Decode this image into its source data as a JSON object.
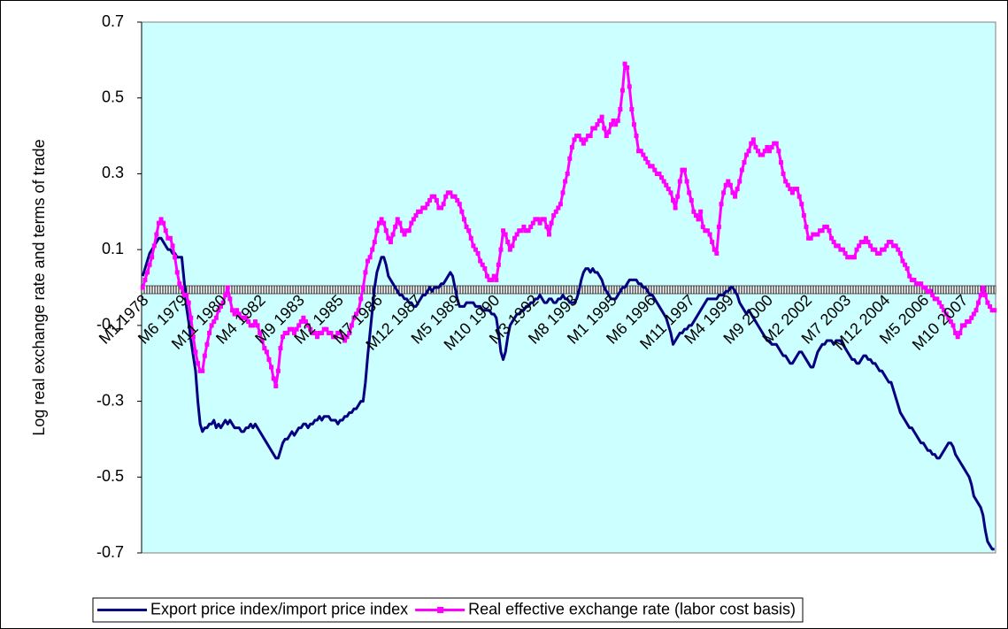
{
  "chart_data": {
    "type": "line",
    "y_label": "Log real exchange rate and terms of trade",
    "ylim": [
      -0.7,
      0.7
    ],
    "yticks": [
      -0.7,
      -0.5,
      -0.3,
      -0.1,
      0.1,
      0.3,
      0.5,
      0.7
    ],
    "legend": "bottom",
    "background": "#ccffff",
    "categories": [
      "M1 1978",
      null,
      null,
      null,
      null,
      null,
      null,
      null,
      null,
      null,
      null,
      null,
      null,
      null,
      null,
      null,
      null,
      "M6 1979",
      null,
      null,
      null,
      null,
      null,
      null,
      null,
      null,
      null,
      null,
      null,
      null,
      null,
      null,
      null,
      null,
      "M11 1980",
      null,
      null,
      null,
      null,
      null,
      null,
      null,
      null,
      null,
      null,
      null,
      null,
      null,
      null,
      null,
      null,
      "M4 1982",
      null,
      null,
      null,
      null,
      null,
      null,
      null,
      null,
      null,
      null,
      null,
      null,
      null,
      null,
      null,
      null,
      "M9 1983",
      null,
      null,
      null,
      null,
      null,
      null,
      null,
      null,
      null,
      null,
      null,
      null,
      null,
      null,
      null,
      null,
      "M2 1985",
      null,
      null,
      null,
      null,
      null,
      null,
      null,
      null,
      null,
      null,
      null,
      null,
      null,
      null,
      null,
      null,
      "M7 1986",
      null,
      null,
      null,
      null,
      null,
      null,
      null,
      null,
      null,
      null,
      null,
      null,
      null,
      null,
      null,
      null,
      "M12 1987",
      null,
      null,
      null,
      null,
      null,
      null,
      null,
      null,
      null,
      null,
      null,
      null,
      null,
      null,
      null,
      null,
      "M5 1989",
      null,
      null,
      null,
      null,
      null,
      null,
      null,
      null,
      null,
      null,
      null,
      null,
      null,
      null,
      null,
      null,
      "M10 1990",
      null,
      null,
      null,
      null,
      null,
      null,
      null,
      null,
      null,
      null,
      null,
      null,
      null,
      null,
      null,
      null,
      "M3 1992",
      null,
      null,
      null,
      null,
      null,
      null,
      null,
      null,
      null,
      null,
      null,
      null,
      null,
      null,
      null,
      null,
      "M8 1993",
      null,
      null,
      null,
      null,
      null,
      null,
      null,
      null,
      null,
      null,
      null,
      null,
      null,
      null,
      null,
      null,
      "M1 1995",
      null,
      null,
      null,
      null,
      null,
      null,
      null,
      null,
      null,
      null,
      null,
      null,
      null,
      null,
      null,
      null,
      "M6 1996",
      null,
      null,
      null,
      null,
      null,
      null,
      null,
      null,
      null,
      null,
      null,
      null,
      null,
      null,
      null,
      null,
      "M11 1997",
      null,
      null,
      null,
      null,
      null,
      null,
      null,
      null,
      null,
      null,
      null,
      null,
      null,
      null,
      null,
      null,
      "M4 1999",
      null,
      null,
      null,
      null,
      null,
      null,
      null,
      null,
      null,
      null,
      null,
      null,
      null,
      null,
      null,
      null,
      "M9 2000",
      null,
      null,
      null,
      null,
      null,
      null,
      null,
      null,
      null,
      null,
      null,
      null,
      null,
      null,
      null,
      null,
      "M2 2002",
      null,
      null,
      null,
      null,
      null,
      null,
      null,
      null,
      null,
      null,
      null,
      null,
      null,
      null,
      null,
      null,
      "M7 2003",
      null,
      null,
      null,
      null,
      null,
      null,
      null,
      null,
      null,
      null,
      null,
      null,
      null,
      null,
      null,
      null,
      "M12 2004",
      null,
      null,
      null,
      null,
      null,
      null,
      null,
      null,
      null,
      null,
      null,
      null,
      null,
      null,
      null,
      null,
      "M5 2006",
      null,
      null,
      null,
      null,
      null,
      null,
      null,
      null,
      null,
      null,
      null,
      null,
      null,
      null,
      null,
      null,
      "M10 2007",
      null,
      null,
      null,
      null,
      null,
      null,
      null,
      null,
      null,
      null,
      null,
      null,
      null,
      null
    ],
    "series": [
      {
        "name": "Export price index/import price index",
        "color": "#000080",
        "marker": "none",
        "values": [
          0.03,
          0.05,
          0.07,
          0.09,
          0.1,
          0.11,
          0.12,
          0.13,
          0.13,
          0.12,
          0.11,
          0.1,
          0.1,
          0.09,
          0.09,
          0.08,
          0.08,
          0.08,
          0.02,
          -0.05,
          -0.09,
          -0.14,
          -0.18,
          -0.22,
          -0.3,
          -0.36,
          -0.38,
          -0.37,
          -0.37,
          -0.36,
          -0.36,
          -0.35,
          -0.37,
          -0.36,
          -0.37,
          -0.36,
          -0.35,
          -0.36,
          -0.35,
          -0.36,
          -0.37,
          -0.37,
          -0.37,
          -0.38,
          -0.38,
          -0.37,
          -0.37,
          -0.36,
          -0.37,
          -0.36,
          -0.37,
          -0.38,
          -0.39,
          -0.4,
          -0.41,
          -0.42,
          -0.43,
          -0.44,
          -0.45,
          -0.45,
          -0.43,
          -0.41,
          -0.4,
          -0.4,
          -0.39,
          -0.38,
          -0.39,
          -0.38,
          -0.37,
          -0.37,
          -0.36,
          -0.36,
          -0.37,
          -0.36,
          -0.36,
          -0.35,
          -0.35,
          -0.34,
          -0.35,
          -0.34,
          -0.34,
          -0.34,
          -0.35,
          -0.35,
          -0.35,
          -0.36,
          -0.35,
          -0.35,
          -0.34,
          -0.34,
          -0.33,
          -0.33,
          -0.32,
          -0.32,
          -0.31,
          -0.3,
          -0.3,
          -0.25,
          -0.18,
          -0.12,
          -0.06,
          0.0,
          0.04,
          0.06,
          0.08,
          0.08,
          0.06,
          0.03,
          0.02,
          0.01,
          0.0,
          -0.01,
          -0.02,
          -0.02,
          -0.03,
          -0.03,
          -0.04,
          -0.04,
          -0.05,
          -0.05,
          -0.04,
          -0.03,
          -0.02,
          -0.02,
          -0.01,
          0.0,
          -0.01,
          0.0,
          0.0,
          0.0,
          0.01,
          0.01,
          0.02,
          0.03,
          0.04,
          0.03,
          0.0,
          -0.03,
          -0.05,
          -0.05,
          -0.05,
          -0.04,
          -0.04,
          -0.04,
          -0.04,
          -0.05,
          -0.05,
          -0.05,
          -0.06,
          -0.06,
          -0.06,
          -0.06,
          -0.07,
          -0.07,
          -0.08,
          -0.12,
          -0.17,
          -0.19,
          -0.17,
          -0.13,
          -0.1,
          -0.09,
          -0.08,
          -0.07,
          -0.07,
          -0.06,
          -0.06,
          -0.05,
          -0.05,
          -0.04,
          -0.04,
          -0.03,
          -0.03,
          -0.02,
          -0.03,
          -0.04,
          -0.04,
          -0.03,
          -0.03,
          -0.04,
          -0.04,
          -0.03,
          -0.03,
          -0.02,
          -0.03,
          -0.03,
          -0.04,
          -0.04,
          -0.04,
          -0.03,
          -0.01,
          0.02,
          0.04,
          0.05,
          0.05,
          0.04,
          0.05,
          0.04,
          0.04,
          0.03,
          0.02,
          0.0,
          -0.01,
          -0.02,
          -0.03,
          -0.03,
          -0.03,
          -0.02,
          -0.01,
          0.0,
          0.0,
          0.01,
          0.02,
          0.02,
          0.02,
          0.02,
          0.01,
          0.01,
          0.0,
          0.0,
          -0.01,
          -0.02,
          -0.02,
          -0.03,
          -0.04,
          -0.05,
          -0.06,
          -0.07,
          -0.08,
          -0.1,
          -0.12,
          -0.15,
          -0.14,
          -0.13,
          -0.12,
          -0.12,
          -0.11,
          -0.11,
          -0.1,
          -0.1,
          -0.09,
          -0.08,
          -0.07,
          -0.06,
          -0.05,
          -0.04,
          -0.03,
          -0.03,
          -0.03,
          -0.03,
          -0.03,
          -0.02,
          -0.02,
          -0.02,
          -0.01,
          -0.01,
          0.0,
          0.0,
          -0.01,
          -0.02,
          -0.04,
          -0.05,
          -0.06,
          -0.07,
          -0.06,
          -0.07,
          -0.08,
          -0.09,
          -0.1,
          -0.11,
          -0.12,
          -0.13,
          -0.14,
          -0.14,
          -0.15,
          -0.15,
          -0.15,
          -0.16,
          -0.17,
          -0.18,
          -0.18,
          -0.19,
          -0.2,
          -0.2,
          -0.19,
          -0.18,
          -0.17,
          -0.17,
          -0.18,
          -0.19,
          -0.2,
          -0.21,
          -0.21,
          -0.19,
          -0.17,
          -0.16,
          -0.15,
          -0.15,
          -0.14,
          -0.14,
          -0.14,
          -0.15,
          -0.14,
          -0.14,
          -0.14,
          -0.15,
          -0.16,
          -0.17,
          -0.18,
          -0.19,
          -0.19,
          -0.2,
          -0.2,
          -0.19,
          -0.18,
          -0.18,
          -0.19,
          -0.19,
          -0.2,
          -0.2,
          -0.21,
          -0.22,
          -0.22,
          -0.23,
          -0.24,
          -0.25,
          -0.25,
          -0.27,
          -0.29,
          -0.31,
          -0.33,
          -0.34,
          -0.35,
          -0.36,
          -0.37,
          -0.37,
          -0.38,
          -0.39,
          -0.4,
          -0.41,
          -0.41,
          -0.42,
          -0.43,
          -0.43,
          -0.44,
          -0.44,
          -0.45,
          -0.45,
          -0.44,
          -0.43,
          -0.42,
          -0.41,
          -0.41,
          -0.42,
          -0.44,
          -0.45,
          -0.46,
          -0.47,
          -0.48,
          -0.49,
          -0.5,
          -0.52,
          -0.55,
          -0.56,
          -0.57,
          -0.58,
          -0.6,
          -0.64,
          -0.67,
          -0.68,
          -0.69,
          -0.69
        ]
      },
      {
        "name": "Real effective exchange rate (labor cost basis)",
        "color": "#ff00ff",
        "marker": "square",
        "values": [
          0.0,
          0.02,
          0.04,
          0.06,
          0.08,
          0.11,
          0.14,
          0.17,
          0.18,
          0.17,
          0.15,
          0.13,
          0.13,
          0.11,
          0.08,
          0.04,
          0.01,
          0.0,
          -0.02,
          -0.02,
          -0.04,
          -0.08,
          -0.13,
          -0.17,
          -0.2,
          -0.22,
          -0.22,
          -0.18,
          -0.15,
          -0.12,
          -0.1,
          -0.09,
          -0.08,
          -0.06,
          -0.05,
          -0.04,
          -0.02,
          0.0,
          -0.03,
          -0.06,
          -0.07,
          -0.06,
          -0.07,
          -0.08,
          -0.08,
          -0.08,
          -0.09,
          -0.1,
          -0.1,
          -0.09,
          -0.1,
          -0.12,
          -0.14,
          -0.16,
          -0.17,
          -0.19,
          -0.21,
          -0.24,
          -0.26,
          -0.22,
          -0.16,
          -0.13,
          -0.12,
          -0.12,
          -0.11,
          -0.11,
          -0.12,
          -0.11,
          -0.1,
          -0.09,
          -0.08,
          -0.09,
          -0.1,
          -0.11,
          -0.12,
          -0.12,
          -0.13,
          -0.12,
          -0.12,
          -0.11,
          -0.11,
          -0.12,
          -0.12,
          -0.13,
          -0.13,
          -0.12,
          -0.12,
          -0.13,
          -0.14,
          -0.13,
          -0.12,
          -0.1,
          -0.08,
          -0.07,
          -0.06,
          -0.03,
          0.0,
          0.04,
          0.07,
          0.08,
          0.1,
          0.12,
          0.15,
          0.17,
          0.18,
          0.17,
          0.15,
          0.13,
          0.12,
          0.14,
          0.16,
          0.18,
          0.17,
          0.15,
          0.14,
          0.15,
          0.15,
          0.17,
          0.18,
          0.19,
          0.2,
          0.2,
          0.21,
          0.21,
          0.22,
          0.23,
          0.24,
          0.24,
          0.23,
          0.21,
          0.21,
          0.22,
          0.24,
          0.25,
          0.25,
          0.24,
          0.24,
          0.23,
          0.22,
          0.2,
          0.18,
          0.16,
          0.15,
          0.13,
          0.11,
          0.1,
          0.09,
          0.07,
          0.06,
          0.05,
          0.03,
          0.02,
          0.02,
          0.03,
          0.02,
          0.06,
          0.1,
          0.15,
          0.14,
          0.12,
          0.1,
          0.11,
          0.13,
          0.14,
          0.15,
          0.15,
          0.16,
          0.15,
          0.15,
          0.16,
          0.17,
          0.18,
          0.18,
          0.17,
          0.18,
          0.18,
          0.16,
          0.14,
          0.17,
          0.19,
          0.2,
          0.21,
          0.22,
          0.25,
          0.28,
          0.3,
          0.34,
          0.37,
          0.39,
          0.4,
          0.4,
          0.39,
          0.38,
          0.39,
          0.4,
          0.4,
          0.42,
          0.42,
          0.43,
          0.44,
          0.45,
          0.42,
          0.4,
          0.41,
          0.43,
          0.44,
          0.43,
          0.44,
          0.47,
          0.52,
          0.59,
          0.58,
          0.53,
          0.47,
          0.43,
          0.4,
          0.36,
          0.36,
          0.35,
          0.34,
          0.33,
          0.32,
          0.32,
          0.31,
          0.3,
          0.3,
          0.29,
          0.28,
          0.27,
          0.26,
          0.25,
          0.23,
          0.21,
          0.24,
          0.28,
          0.31,
          0.31,
          0.28,
          0.25,
          0.23,
          0.2,
          0.19,
          0.18,
          0.2,
          0.16,
          0.15,
          0.15,
          0.14,
          0.12,
          0.1,
          0.09,
          0.16,
          0.22,
          0.25,
          0.27,
          0.28,
          0.27,
          0.25,
          0.24,
          0.26,
          0.28,
          0.31,
          0.33,
          0.35,
          0.36,
          0.38,
          0.39,
          0.37,
          0.36,
          0.35,
          0.35,
          0.36,
          0.37,
          0.36,
          0.37,
          0.38,
          0.38,
          0.36,
          0.33,
          0.3,
          0.28,
          0.27,
          0.26,
          0.25,
          0.26,
          0.26,
          0.24,
          0.22,
          0.19,
          0.16,
          0.13,
          0.13,
          0.14,
          0.14,
          0.14,
          0.15,
          0.15,
          0.16,
          0.16,
          0.15,
          0.13,
          0.12,
          0.11,
          0.11,
          0.1,
          0.1,
          0.09,
          0.08,
          0.08,
          0.08,
          0.08,
          0.1,
          0.11,
          0.12,
          0.12,
          0.13,
          0.12,
          0.11,
          0.1,
          0.1,
          0.09,
          0.09,
          0.1,
          0.1,
          0.11,
          0.12,
          0.12,
          0.11,
          0.11,
          0.1,
          0.09,
          0.07,
          0.06,
          0.05,
          0.03,
          0.02,
          0.02,
          0.01,
          0.01,
          0.01,
          0.0,
          0.0,
          -0.01,
          -0.01,
          -0.02,
          -0.03,
          -0.03,
          -0.04,
          -0.05,
          -0.06,
          -0.07,
          -0.08,
          -0.09,
          -0.1,
          -0.12,
          -0.13,
          -0.12,
          -0.1,
          -0.1,
          -0.09,
          -0.09,
          -0.08,
          -0.07,
          -0.06,
          -0.04,
          -0.02,
          0.0,
          -0.02,
          -0.04,
          -0.05,
          -0.06,
          -0.06
        ]
      }
    ]
  }
}
